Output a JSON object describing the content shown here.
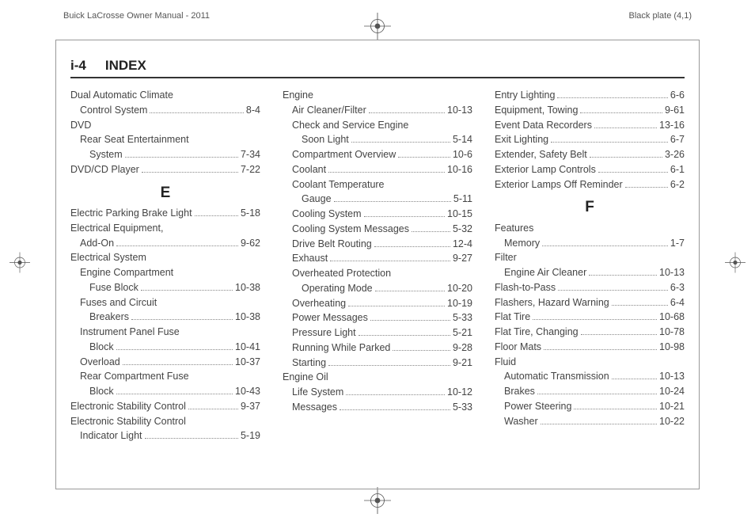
{
  "header": {
    "manual": "Buick LaCrosse Owner Manual - 2011",
    "plate": "Black plate (4,1)"
  },
  "page": {
    "number": "i-4",
    "title": "INDEX"
  },
  "columns": [
    [
      {
        "t": "entry",
        "indent": 0,
        "label": "Dual Automatic Climate"
      },
      {
        "t": "entry",
        "indent": 1,
        "label": "Control System",
        "ref": "8-4"
      },
      {
        "t": "entry",
        "indent": 0,
        "label": "DVD"
      },
      {
        "t": "entry",
        "indent": 1,
        "label": "Rear Seat Entertainment"
      },
      {
        "t": "entry",
        "indent": 2,
        "label": "System",
        "ref": "7-34"
      },
      {
        "t": "entry",
        "indent": 0,
        "label": "DVD/CD Player",
        "ref": "7-22"
      },
      {
        "t": "letter",
        "text": "E"
      },
      {
        "t": "entry",
        "indent": 0,
        "label": "Electric Parking Brake Light",
        "ref": "5-18"
      },
      {
        "t": "entry",
        "indent": 0,
        "label": "Electrical Equipment,"
      },
      {
        "t": "entry",
        "indent": 1,
        "label": "Add-On",
        "ref": "9-62"
      },
      {
        "t": "entry",
        "indent": 0,
        "label": "Electrical System"
      },
      {
        "t": "entry",
        "indent": 1,
        "label": "Engine Compartment"
      },
      {
        "t": "entry",
        "indent": 2,
        "label": "Fuse Block",
        "ref": "10-38"
      },
      {
        "t": "entry",
        "indent": 1,
        "label": "Fuses and Circuit"
      },
      {
        "t": "entry",
        "indent": 2,
        "label": "Breakers",
        "ref": "10-38"
      },
      {
        "t": "entry",
        "indent": 1,
        "label": "Instrument Panel Fuse"
      },
      {
        "t": "entry",
        "indent": 2,
        "label": "Block",
        "ref": "10-41"
      },
      {
        "t": "entry",
        "indent": 1,
        "label": "Overload",
        "ref": "10-37"
      },
      {
        "t": "entry",
        "indent": 1,
        "label": "Rear Compartment Fuse"
      },
      {
        "t": "entry",
        "indent": 2,
        "label": "Block",
        "ref": "10-43"
      },
      {
        "t": "entry",
        "indent": 0,
        "label": "Electronic Stability Control",
        "ref": "9-37"
      },
      {
        "t": "entry",
        "indent": 0,
        "label": "Electronic Stability Control"
      },
      {
        "t": "entry",
        "indent": 1,
        "label": "Indicator Light",
        "ref": "5-19"
      }
    ],
    [
      {
        "t": "entry",
        "indent": 0,
        "label": "Engine"
      },
      {
        "t": "entry",
        "indent": 1,
        "label": "Air Cleaner/Filter",
        "ref": "10-13"
      },
      {
        "t": "entry",
        "indent": 1,
        "label": "Check and Service Engine"
      },
      {
        "t": "entry",
        "indent": 2,
        "label": "Soon Light",
        "ref": "5-14"
      },
      {
        "t": "entry",
        "indent": 1,
        "label": "Compartment Overview",
        "ref": "10-6"
      },
      {
        "t": "entry",
        "indent": 1,
        "label": "Coolant",
        "ref": "10-16"
      },
      {
        "t": "entry",
        "indent": 1,
        "label": "Coolant Temperature"
      },
      {
        "t": "entry",
        "indent": 2,
        "label": "Gauge",
        "ref": "5-11"
      },
      {
        "t": "entry",
        "indent": 1,
        "label": "Cooling System",
        "ref": "10-15"
      },
      {
        "t": "entry",
        "indent": 1,
        "label": "Cooling System Messages",
        "ref": "5-32"
      },
      {
        "t": "entry",
        "indent": 1,
        "label": "Drive Belt Routing",
        "ref": "12-4"
      },
      {
        "t": "entry",
        "indent": 1,
        "label": "Exhaust",
        "ref": "9-27"
      },
      {
        "t": "entry",
        "indent": 1,
        "label": "Overheated Protection"
      },
      {
        "t": "entry",
        "indent": 2,
        "label": "Operating Mode",
        "ref": "10-20"
      },
      {
        "t": "entry",
        "indent": 1,
        "label": "Overheating",
        "ref": "10-19"
      },
      {
        "t": "entry",
        "indent": 1,
        "label": "Power Messages",
        "ref": "5-33"
      },
      {
        "t": "entry",
        "indent": 1,
        "label": "Pressure Light",
        "ref": "5-21"
      },
      {
        "t": "entry",
        "indent": 1,
        "label": "Running While Parked",
        "ref": "9-28"
      },
      {
        "t": "entry",
        "indent": 1,
        "label": "Starting",
        "ref": "9-21"
      },
      {
        "t": "entry",
        "indent": 0,
        "label": "Engine Oil"
      },
      {
        "t": "entry",
        "indent": 1,
        "label": "Life System",
        "ref": "10-12"
      },
      {
        "t": "entry",
        "indent": 1,
        "label": "Messages",
        "ref": "5-33"
      }
    ],
    [
      {
        "t": "entry",
        "indent": 0,
        "label": "Entry Lighting",
        "ref": "6-6"
      },
      {
        "t": "entry",
        "indent": 0,
        "label": "Equipment, Towing",
        "ref": "9-61"
      },
      {
        "t": "entry",
        "indent": 0,
        "label": "Event Data Recorders",
        "ref": "13-16"
      },
      {
        "t": "entry",
        "indent": 0,
        "label": "Exit Lighting",
        "ref": "6-7"
      },
      {
        "t": "entry",
        "indent": 0,
        "label": "Extender, Safety Belt",
        "ref": "3-26"
      },
      {
        "t": "entry",
        "indent": 0,
        "label": "Exterior Lamp Controls",
        "ref": "6-1"
      },
      {
        "t": "entry",
        "indent": 0,
        "label": "Exterior Lamps Off Reminder",
        "ref": "6-2"
      },
      {
        "t": "letter",
        "text": "F"
      },
      {
        "t": "entry",
        "indent": 0,
        "label": "Features"
      },
      {
        "t": "entry",
        "indent": 1,
        "label": "Memory",
        "ref": "1-7"
      },
      {
        "t": "entry",
        "indent": 0,
        "label": "Filter"
      },
      {
        "t": "entry",
        "indent": 1,
        "label": "Engine Air Cleaner",
        "ref": "10-13"
      },
      {
        "t": "entry",
        "indent": 0,
        "label": "Flash-to-Pass",
        "ref": "6-3"
      },
      {
        "t": "entry",
        "indent": 0,
        "label": "Flashers, Hazard Warning",
        "ref": "6-4"
      },
      {
        "t": "entry",
        "indent": 0,
        "label": "Flat Tire",
        "ref": "10-68"
      },
      {
        "t": "entry",
        "indent": 0,
        "label": "Flat Tire, Changing",
        "ref": "10-78"
      },
      {
        "t": "entry",
        "indent": 0,
        "label": "Floor Mats",
        "ref": "10-98"
      },
      {
        "t": "entry",
        "indent": 0,
        "label": "Fluid"
      },
      {
        "t": "entry",
        "indent": 1,
        "label": "Automatic Transmission",
        "ref": "10-13"
      },
      {
        "t": "entry",
        "indent": 1,
        "label": "Brakes",
        "ref": "10-24"
      },
      {
        "t": "entry",
        "indent": 1,
        "label": "Power Steering",
        "ref": "10-21"
      },
      {
        "t": "entry",
        "indent": 1,
        "label": "Washer",
        "ref": "10-22"
      }
    ]
  ]
}
